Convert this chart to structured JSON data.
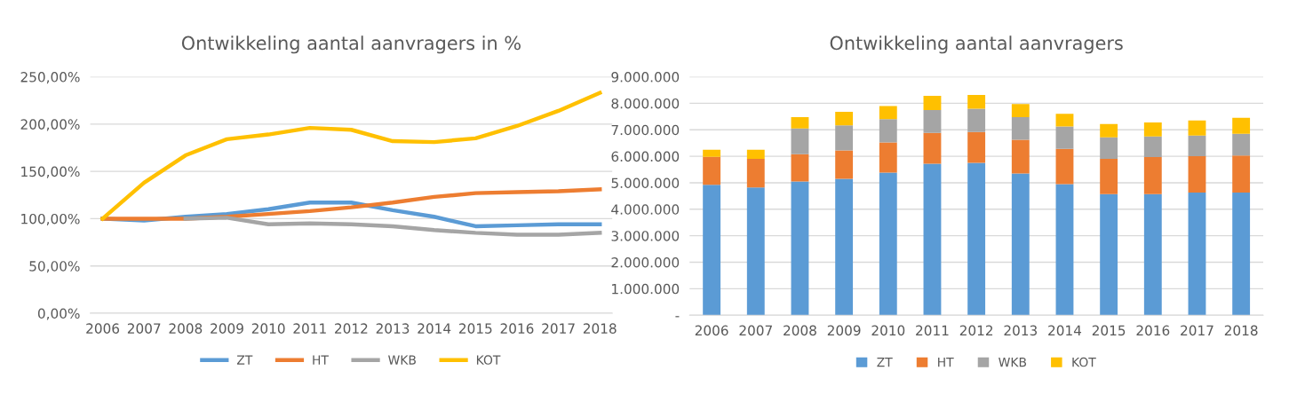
{
  "chart_data": [
    {
      "type": "line",
      "title": "Ontwikkeling aantal aanvragers in %",
      "categories": [
        "2006",
        "2007",
        "2008",
        "2009",
        "2010",
        "2011",
        "2012",
        "2013",
        "2014",
        "2015",
        "2016",
        "2017",
        "2018"
      ],
      "series": [
        {
          "name": "ZT",
          "color": "#5b9bd5",
          "values": [
            100,
            98,
            102,
            105,
            110,
            117,
            117,
            109,
            102,
            92,
            93,
            94,
            94
          ]
        },
        {
          "name": "HT",
          "color": "#ed7d31",
          "values": [
            100,
            100,
            100,
            102,
            105,
            108,
            112,
            117,
            123,
            127,
            128,
            129,
            131
          ]
        },
        {
          "name": "WKB",
          "color": "#a5a5a5",
          "values": [
            null,
            null,
            100,
            101,
            94,
            95,
            94,
            92,
            88,
            85,
            83,
            83,
            85
          ]
        },
        {
          "name": "KOT",
          "color": "#ffc000",
          "values": [
            100,
            138,
            167,
            184,
            189,
            196,
            194,
            182,
            181,
            185,
            198,
            214,
            233
          ]
        }
      ],
      "ylim": [
        0,
        250
      ],
      "yticks": [
        {
          "value": 0,
          "label": "0,00%"
        },
        {
          "value": 50,
          "label": "50,00%"
        },
        {
          "value": 100,
          "label": "100,00%"
        },
        {
          "value": 150,
          "label": "150,00%"
        },
        {
          "value": 200,
          "label": "200,00%"
        },
        {
          "value": 250,
          "label": "250,00%"
        }
      ],
      "grid": "y",
      "legend": "bottom",
      "marker": "none",
      "line_style": "solid"
    },
    {
      "type": "bar",
      "title": "Ontwikkeling aantal aanvragers",
      "stacked": true,
      "categories": [
        "2006",
        "2007",
        "2008",
        "2009",
        "2010",
        "2011",
        "2012",
        "2013",
        "2014",
        "2015",
        "2016",
        "2017",
        "2018"
      ],
      "series": [
        {
          "name": "ZT",
          "color": "#5b9bd5",
          "values": [
            4920000,
            4820000,
            5050000,
            5150000,
            5380000,
            5720000,
            5750000,
            5350000,
            4950000,
            4570000,
            4570000,
            4630000,
            4630000
          ]
        },
        {
          "name": "HT",
          "color": "#ed7d31",
          "values": [
            1060000,
            1080000,
            1030000,
            1070000,
            1140000,
            1160000,
            1170000,
            1270000,
            1330000,
            1330000,
            1400000,
            1370000,
            1400000
          ]
        },
        {
          "name": "WKB",
          "color": "#a5a5a5",
          "values": [
            0,
            0,
            970000,
            950000,
            880000,
            870000,
            880000,
            860000,
            850000,
            820000,
            780000,
            780000,
            820000
          ]
        },
        {
          "name": "KOT",
          "color": "#ffc000",
          "values": [
            270000,
            350000,
            430000,
            510000,
            500000,
            530000,
            520000,
            490000,
            470000,
            500000,
            530000,
            570000,
            600000
          ]
        }
      ],
      "ylim": [
        0,
        9000000
      ],
      "yticks": [
        {
          "value": 0,
          "label": "-"
        },
        {
          "value": 1000000,
          "label": "1.000.000"
        },
        {
          "value": 2000000,
          "label": "2.000.000"
        },
        {
          "value": 3000000,
          "label": "3.000.000"
        },
        {
          "value": 4000000,
          "label": "4.000.000"
        },
        {
          "value": 5000000,
          "label": "5.000.000"
        },
        {
          "value": 6000000,
          "label": "6.000.000"
        },
        {
          "value": 7000000,
          "label": "7.000.000"
        },
        {
          "value": 8000000,
          "label": "8.000.000"
        },
        {
          "value": 9000000,
          "label": "9.000.000"
        }
      ],
      "grid": "y",
      "legend": "bottom"
    }
  ]
}
